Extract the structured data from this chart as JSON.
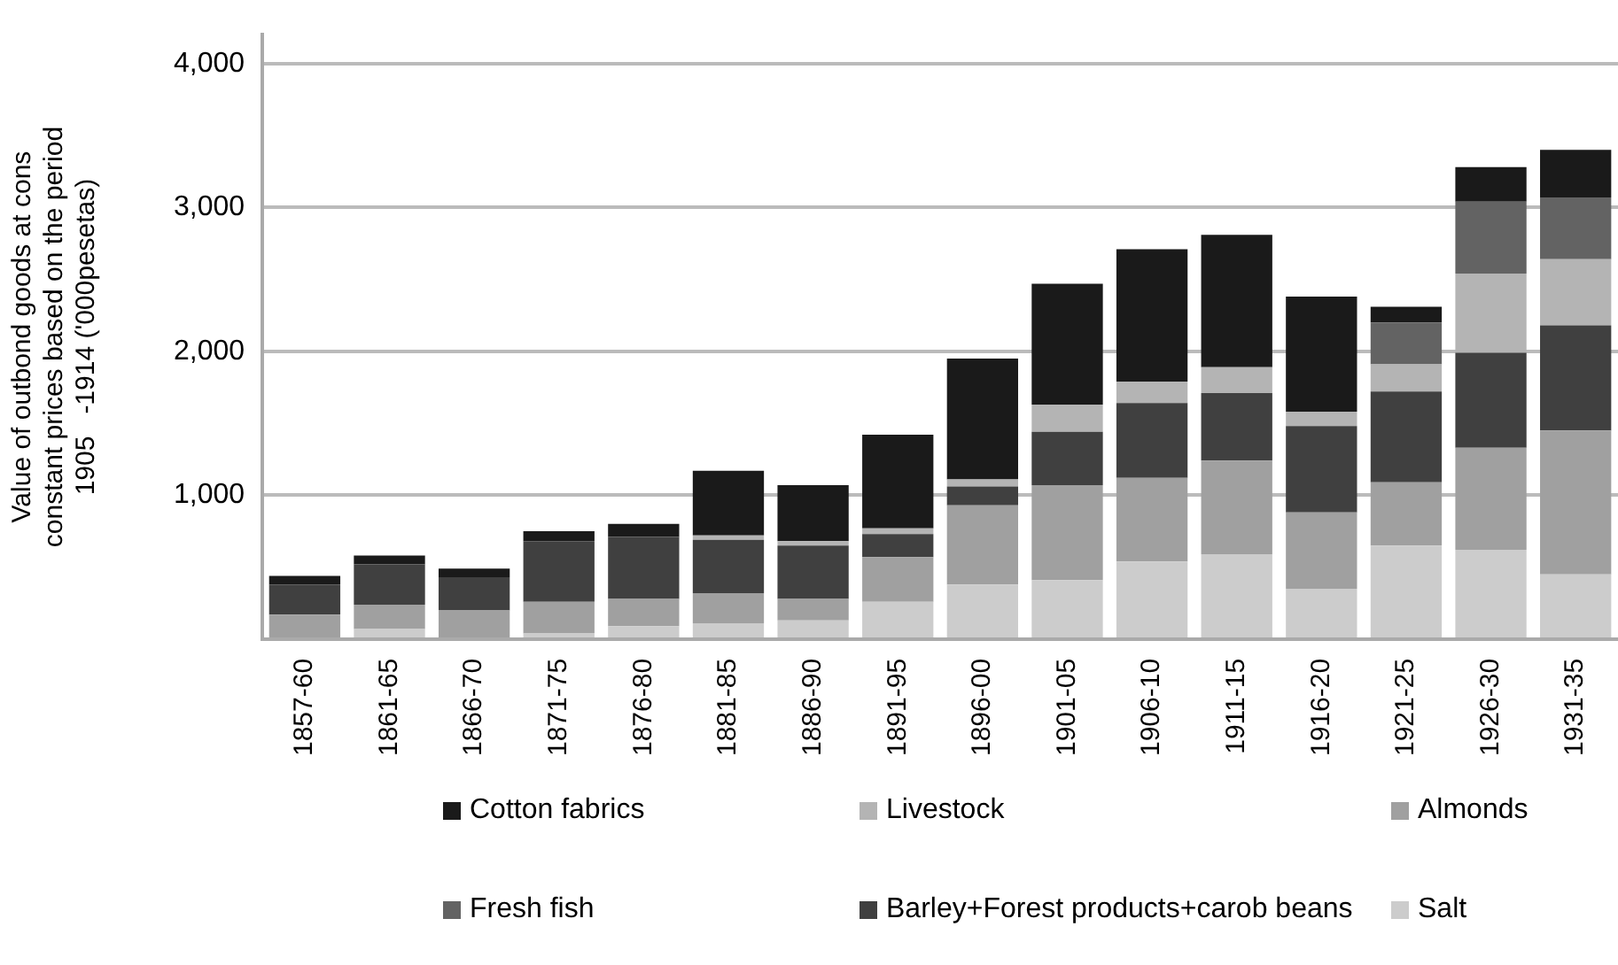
{
  "chart_data": {
    "type": "bar",
    "stacked": true,
    "ylabel": "Value of outbond goods at cons\nconstant prices based on the period\n1905   -1914 ('000pesetas)",
    "categories": [
      "1857-60",
      "1861-65",
      "1866-70",
      "1871-75",
      "1876-80",
      "1881-85",
      "1886-90",
      "1891-95",
      "1896-00",
      "1901-05",
      "1906-10",
      "1911-15",
      "1916-20",
      "1921-25",
      "1926-30",
      "1931-35"
    ],
    "series": [
      {
        "name": "Salt",
        "color": "#cccccc",
        "values": [
          null,
          70,
          null,
          40,
          90,
          110,
          130,
          260,
          380,
          410,
          540,
          590,
          350,
          650,
          620,
          450
        ]
      },
      {
        "name": "Almonds",
        "color": "#a0a0a0",
        "values": [
          170,
          170,
          200,
          220,
          190,
          210,
          150,
          310,
          550,
          660,
          580,
          650,
          530,
          440,
          710,
          1000
        ]
      },
      {
        "name": "Barley+Forest products+carob beans",
        "color": "#404040",
        "values": [
          210,
          280,
          230,
          420,
          430,
          370,
          370,
          160,
          130,
          370,
          520,
          470,
          600,
          630,
          660,
          730
        ]
      },
      {
        "name": "Livestock",
        "color": "#b4b4b4",
        "values": [
          0,
          0,
          0,
          0,
          0,
          30,
          30,
          40,
          50,
          190,
          150,
          180,
          100,
          190,
          550,
          460
        ]
      },
      {
        "name": "Fresh fish",
        "color": "#636363",
        "values": [
          0,
          0,
          0,
          0,
          0,
          0,
          0,
          0,
          0,
          0,
          0,
          0,
          0,
          290,
          500,
          430
        ]
      },
      {
        "name": "Cotton fabrics",
        "color": "#1a1a1a",
        "values": [
          60,
          60,
          60,
          70,
          90,
          450,
          390,
          650,
          840,
          840,
          920,
          920,
          800,
          110,
          240,
          330
        ]
      }
    ],
    "ylim": [
      0,
      4200
    ],
    "yticks": [
      {
        "value": 0,
        "label": null
      },
      {
        "value": 1000,
        "label": "1,000"
      },
      {
        "value": 2000,
        "label": "2,000"
      },
      {
        "value": 3000,
        "label": "3,000"
      },
      {
        "value": 4000,
        "label": "4,000"
      }
    ],
    "grid": "y",
    "legend": "bottom"
  }
}
